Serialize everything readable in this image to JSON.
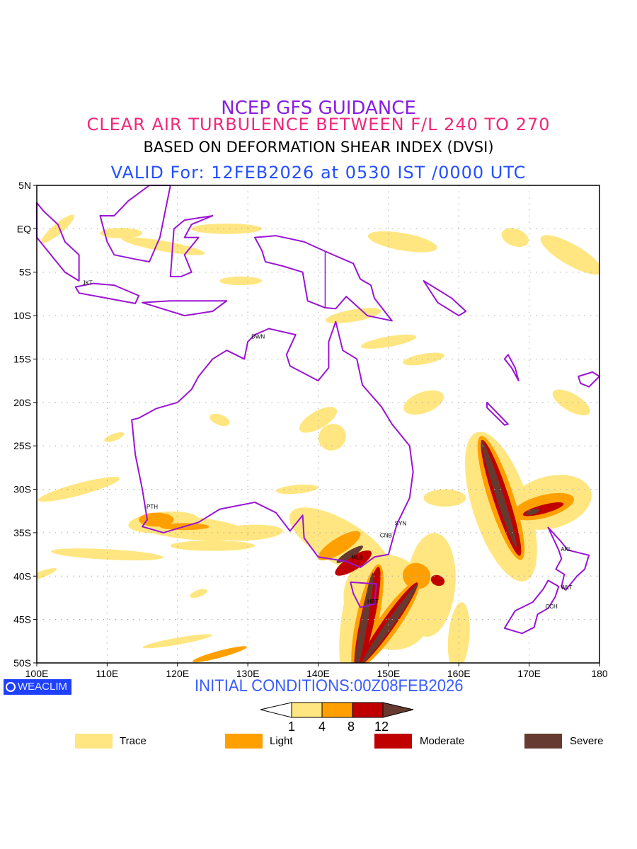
{
  "titles": {
    "line1": "NCEP GFS GUIDANCE",
    "line2": "CLEAR AIR TURBULENCE BETWEEN F/L 240 TO 270",
    "line3": "BASED ON DEFORMATION SHEAR INDEX (DVSI)",
    "line4": "VALID For: 12FEB2026 at 0530 IST /0000 UTC"
  },
  "axes": {
    "lat_labels": [
      "5N",
      "EQ",
      "5S",
      "10S",
      "15S",
      "20S",
      "25S",
      "30S",
      "35S",
      "40S",
      "45S",
      "50S"
    ],
    "lon_labels": [
      "100E",
      "110E",
      "120E",
      "130E",
      "140E",
      "150E",
      "160E",
      "170E",
      "180"
    ],
    "lon_range": [
      100,
      180
    ],
    "lat_range": [
      -50,
      5
    ]
  },
  "cities": [
    {
      "code": "JKT",
      "lon": 106.8,
      "lat": -6.2
    },
    {
      "code": "DWN",
      "lon": 130.8,
      "lat": -12.4
    },
    {
      "code": "PTH",
      "lon": 115.9,
      "lat": -32.0
    },
    {
      "code": "SYN",
      "lon": 151.2,
      "lat": -33.9
    },
    {
      "code": "CNB",
      "lon": 149.1,
      "lat": -35.3
    },
    {
      "code": "MLB",
      "lon": 145.0,
      "lat": -37.8
    },
    {
      "code": "HBT",
      "lon": 147.3,
      "lat": -42.9
    },
    {
      "code": "AKL",
      "lon": 174.8,
      "lat": -36.9
    },
    {
      "code": "WLT",
      "lon": 174.8,
      "lat": -41.3
    },
    {
      "code": "CCH",
      "lon": 172.6,
      "lat": -43.5
    }
  ],
  "logo": "WEACLIM",
  "initial_conditions": "INITIAL CONDITIONS:00Z08FEB2026",
  "colorbar": {
    "ticks": [
      "1",
      "4",
      "8",
      "12"
    ]
  },
  "legend": [
    {
      "label": "Trace",
      "color": "#ffe680"
    },
    {
      "label": "Light",
      "color": "#ffa000"
    },
    {
      "label": "Moderate",
      "color": "#c00000"
    },
    {
      "label": "Severe",
      "color": "#663a30"
    }
  ],
  "coast_color": "#9a14d4"
}
